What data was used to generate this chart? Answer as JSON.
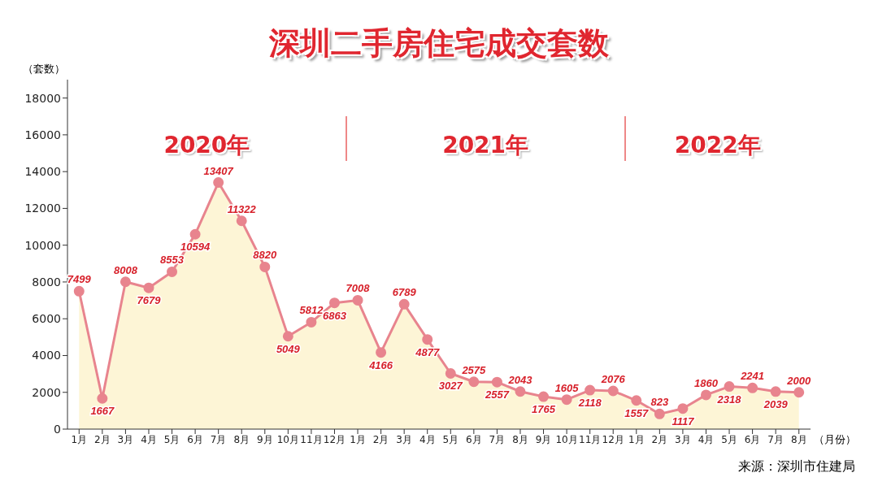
{
  "chart_data": {
    "type": "area",
    "title": "深圳二手房住宅成交套数",
    "ylabel": "（套数）",
    "xlabel": "（月份）",
    "categories": [
      "1月",
      "2月",
      "3月",
      "4月",
      "5月",
      "6月",
      "7月",
      "8月",
      "9月",
      "10月",
      "11月",
      "12月",
      "1月",
      "2月",
      "3月",
      "4月",
      "5月",
      "6月",
      "7月",
      "8月",
      "9月",
      "10月",
      "11月",
      "12月",
      "1月",
      "2月",
      "3月",
      "4月",
      "5月",
      "6月",
      "7月",
      "8月"
    ],
    "series": [
      {
        "color": "#e8848e",
        "values": [
          7499,
          1667,
          8008,
          7679,
          8553,
          10594,
          13407,
          11322,
          8820,
          5049,
          5812,
          6863,
          7008,
          4166,
          6789,
          4877,
          3027,
          2575,
          2557,
          2043,
          1765,
          1605,
          2118,
          2076,
          1557,
          823,
          1117,
          1860,
          2318,
          2241,
          2039,
          2000
        ]
      }
    ],
    "ylim": [
      0,
      19000
    ],
    "yticks": [
      0,
      2000,
      4000,
      6000,
      8000,
      10000,
      12000,
      14000,
      16000,
      18000
    ],
    "marker": "circle",
    "data_labels": true,
    "annotations": [
      "2020年",
      "2021年",
      "2022年",
      "来源：深圳市住建局"
    ]
  }
}
